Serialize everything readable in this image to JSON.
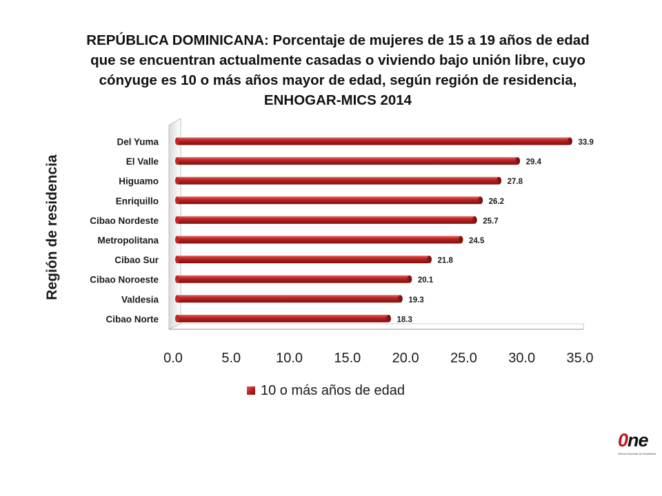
{
  "title": {
    "line1": "REPÚBLICA DOMINICANA: Porcentaje de mujeres de 15 a 19 años de edad",
    "line2": "que se encuentran actualmente casadas o viviendo bajo unión libre, cuyo",
    "line3": "cónyuge es 10 o más años mayor de edad, según región de residencia,",
    "line4": "ENHOGAR-MICS 2014"
  },
  "logo": {
    "text": "ne",
    "zero": "0",
    "subtext": "Oficina Nacional de Estadística"
  },
  "chart_data": {
    "type": "bar",
    "orientation": "horizontal",
    "title": "REPÚBLICA DOMINICANA: Porcentaje de mujeres de 15 a 19 años de edad que se encuentran actualmente casadas o viviendo bajo unión libre, cuyo cónyuge es 10 o más años mayor de edad, según región de residencia, ENHOGAR-MICS 2014",
    "xlabel": "",
    "ylabel": "Región de residencia",
    "xlim": [
      0,
      35
    ],
    "xticks": [
      "0.0",
      "5.0",
      "10.0",
      "15.0",
      "20.0",
      "25.0",
      "30.0",
      "35.0"
    ],
    "categories": [
      "Del Yuma",
      "El Valle",
      "Higuamo",
      "Enriquillo",
      "Cibao Nordeste",
      "Metropolitana",
      "Cibao Sur",
      "Cibao Noroeste",
      "Valdesia",
      "Cibao Norte"
    ],
    "series": [
      {
        "name": "10 o más años de edad",
        "values": [
          33.9,
          29.4,
          27.8,
          26.2,
          25.7,
          24.5,
          21.8,
          20.1,
          19.3,
          18.3
        ],
        "labels": [
          "33.9",
          "29.4",
          "27.8",
          "26.2",
          "25.7",
          "24.5",
          "21.8",
          "20.1",
          "19.3",
          "18.3"
        ],
        "color": "#b01c1c"
      }
    ],
    "grid": false,
    "legend": "bottom"
  }
}
